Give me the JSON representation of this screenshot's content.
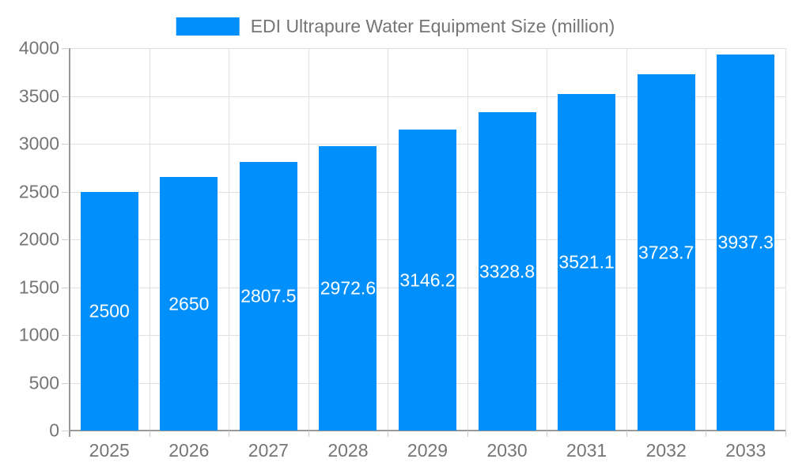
{
  "chart_data": {
    "type": "bar",
    "title": "EDI Ultrapure Water Equipment Size (million)",
    "legend": [
      "EDI Ultrapure Water Equipment Size (million)"
    ],
    "legend_position": "top",
    "categories": [
      "2025",
      "2026",
      "2027",
      "2028",
      "2029",
      "2030",
      "2031",
      "2032",
      "2033"
    ],
    "series": [
      {
        "name": "EDI Ultrapure Water Equipment Size (million)",
        "values": [
          2500,
          2650,
          2807.5,
          2972.6,
          3146.2,
          3328.8,
          3521.1,
          3723.7,
          3937.3
        ]
      }
    ],
    "xlabel": "",
    "ylabel": "",
    "ylim": [
      0,
      4000
    ],
    "ytick_step": 500,
    "yticks": [
      0,
      500,
      1000,
      1500,
      2000,
      2500,
      3000,
      3500,
      4000
    ],
    "grid": true,
    "colors": {
      "bar": "#0190FB",
      "bar_label": "#ffffff",
      "axis_text": "#757575",
      "legend_text": "#757575",
      "grid_line": "#e0e0e0",
      "axis_line": "#999999",
      "tick_mark": "#cccccc",
      "background": "#ffffff"
    }
  }
}
